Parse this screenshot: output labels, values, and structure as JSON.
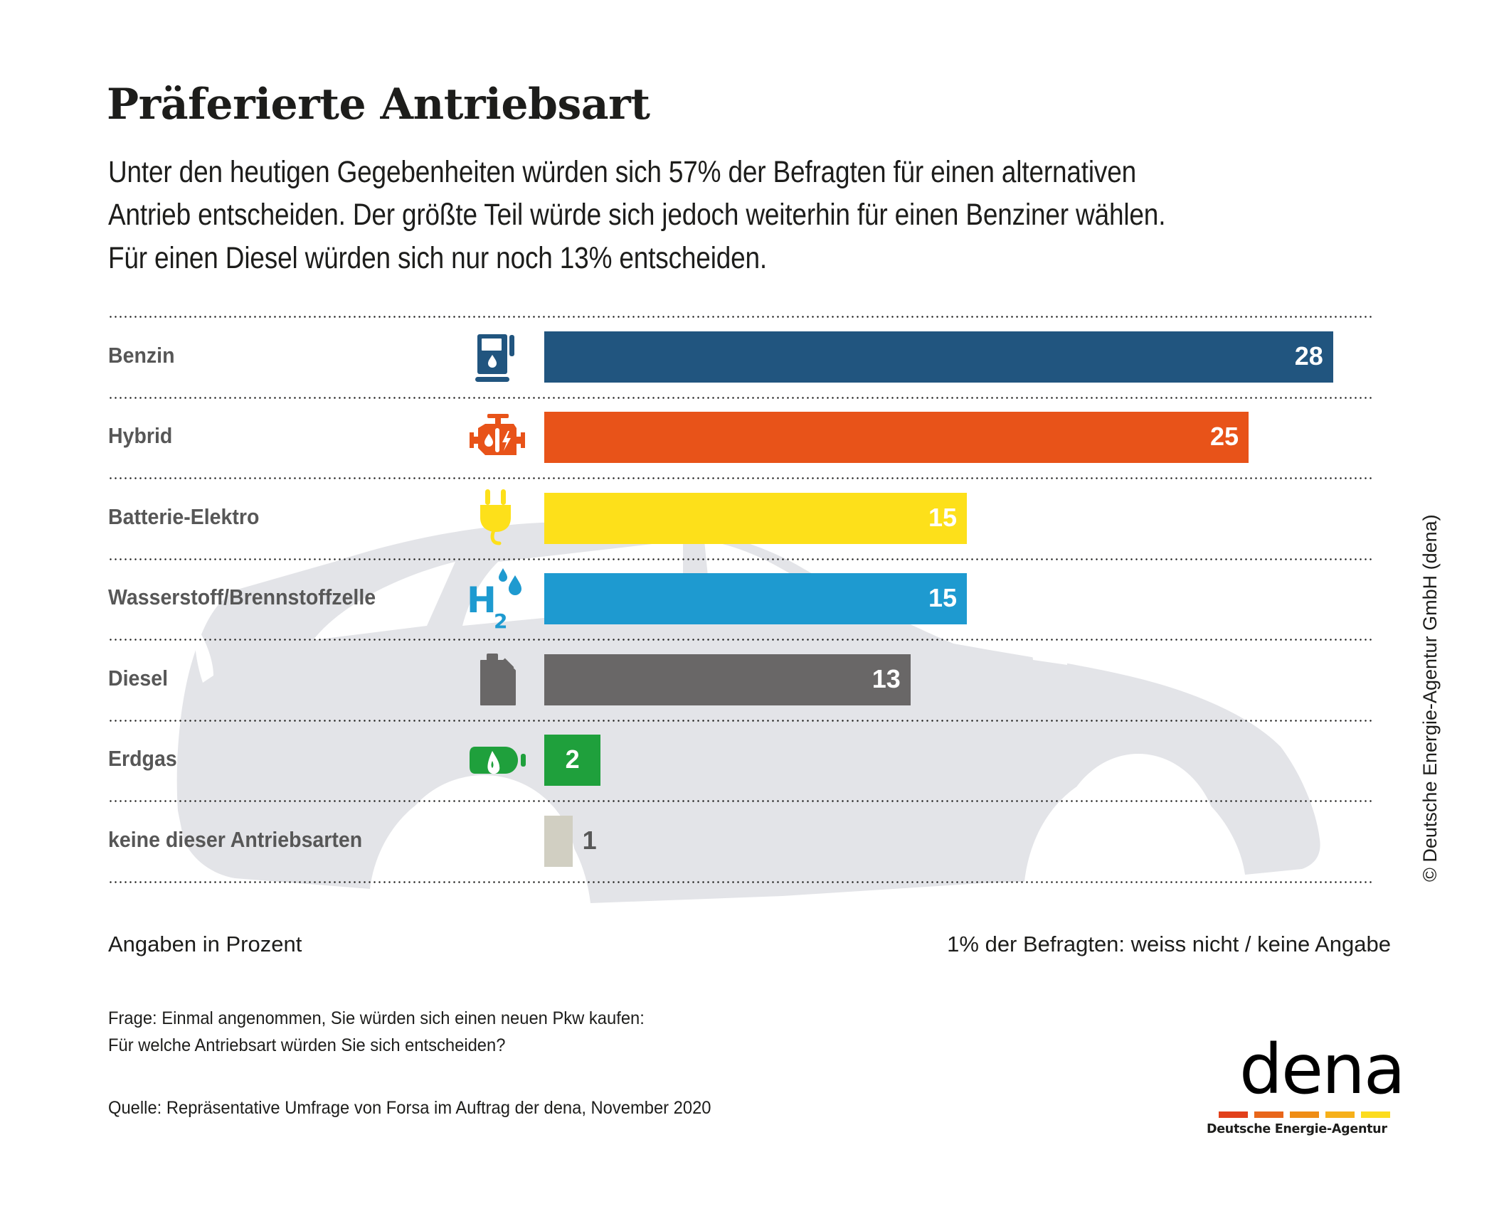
{
  "header": {
    "title": "Präferierte Antriebsart",
    "subtitle_lines": [
      "Unter den heutigen Gegebenheiten würden sich 57% der Befragten für einen alternativen",
      "Antrieb entscheiden. Der größte Teil würde sich jedoch weiterhin für einen Benziner wählen.",
      "Für einen Diesel würden sich nur noch 13% entscheiden."
    ]
  },
  "chart_data": {
    "type": "bar",
    "orientation": "horizontal",
    "title": "Präferierte Antriebsart",
    "xlabel": "",
    "ylabel": "",
    "unit": "Angaben in Prozent",
    "xlim": [
      0,
      30
    ],
    "grid": false,
    "legend": "none",
    "categories": [
      "Benzin",
      "Hybrid",
      "Batterie-Elektro",
      "Wasserstoff/Brennstoffzelle",
      "Diesel",
      "Erdgas",
      "keine dieser Antriebsarten"
    ],
    "values": [
      28,
      25,
      15,
      15,
      13,
      2,
      1
    ],
    "colors": [
      "#21557f",
      "#e85319",
      "#fde01a",
      "#1e9ad0",
      "#696767",
      "#1fa03c",
      "#d1cfc2"
    ],
    "icons": [
      "fuel-pump-icon",
      "hybrid-engine-icon",
      "plug-icon",
      "hydrogen-icon",
      "jerry-can-icon",
      "gas-cylinder-icon",
      "none"
    ],
    "value_labels_inside": [
      true,
      true,
      true,
      true,
      true,
      true,
      false
    ]
  },
  "footer": {
    "unit_note": "Angaben in Prozent",
    "dont_know_note": "1% der Befragten: weiss nicht / keine Angabe",
    "question_lines": [
      "Frage: Einmal angenommen, Sie würden sich einen neuen Pkw kaufen:",
      "Für welche Antriebsart würden Sie sich entscheiden?"
    ],
    "source": "Quelle: Repräsentative Umfrage von Forsa im Auftrag der dena, November 2020",
    "copyright": "© Deutsche Energie-Agentur GmbH (dena)"
  },
  "logo": {
    "word": "dena",
    "subtitle": "Deutsche Energie-Agentur",
    "bar_colors": [
      "#e2401b",
      "#e8661a",
      "#ef8d15",
      "#f6b01a",
      "#fcdc1e"
    ]
  },
  "colors": {
    "silhouette": "#e3e4e8",
    "label_text": "#575757",
    "text": "#1d1d1b"
  }
}
